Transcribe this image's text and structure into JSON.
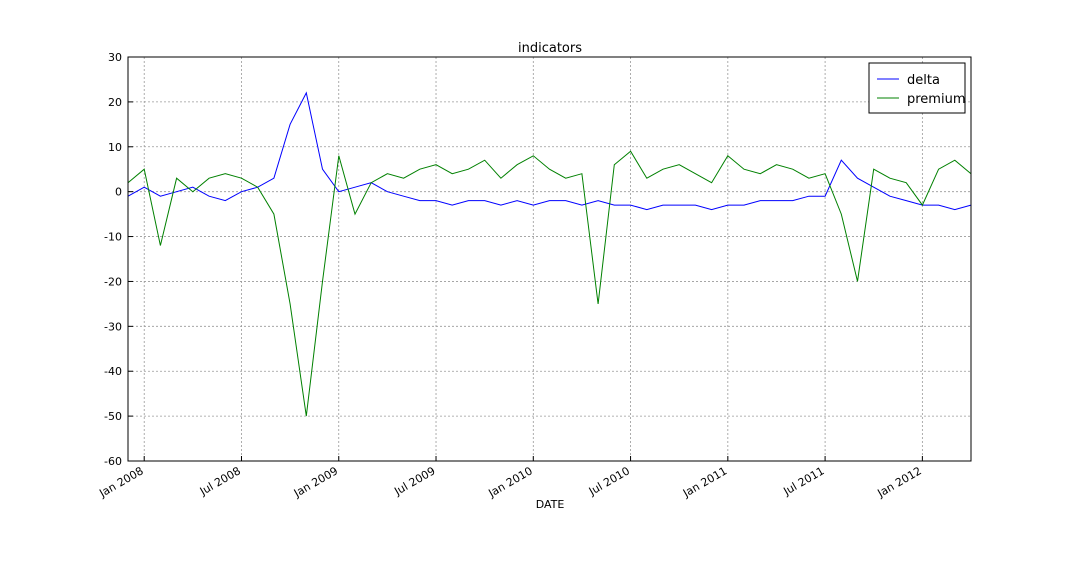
{
  "chart_data": {
    "type": "line",
    "title": "indicators",
    "x_label": "DATE",
    "x": [
      "2007-12",
      "2008-01",
      "2008-02",
      "2008-03",
      "2008-04",
      "2008-05",
      "2008-06",
      "2008-07",
      "2008-08",
      "2008-09",
      "2008-10",
      "2008-11",
      "2008-12",
      "2009-01",
      "2009-02",
      "2009-03",
      "2009-04",
      "2009-05",
      "2009-06",
      "2009-07",
      "2009-08",
      "2009-09",
      "2009-10",
      "2009-11",
      "2009-12",
      "2010-01",
      "2010-02",
      "2010-03",
      "2010-04",
      "2010-05",
      "2010-06",
      "2010-07",
      "2010-08",
      "2010-09",
      "2010-10",
      "2010-11",
      "2010-12",
      "2011-01",
      "2011-02",
      "2011-03",
      "2011-04",
      "2011-05",
      "2011-06",
      "2011-07",
      "2011-08",
      "2011-09",
      "2011-10",
      "2011-11",
      "2011-12",
      "2012-01",
      "2012-02",
      "2012-03",
      "2012-04"
    ],
    "series": [
      {
        "name": "delta",
        "color": "#0000ff",
        "values": [
          -1,
          1,
          -1,
          0,
          1,
          -1,
          -2,
          0,
          1,
          3,
          15,
          22,
          5,
          0,
          1,
          2,
          0,
          -1,
          -2,
          -2,
          -3,
          -2,
          -2,
          -3,
          -2,
          -3,
          -2,
          -2,
          -3,
          -2,
          -3,
          -3,
          -4,
          -3,
          -3,
          -3,
          -4,
          -3,
          -3,
          -2,
          -2,
          -2,
          -1,
          -1,
          7,
          3,
          1,
          -1,
          -2,
          -3,
          -3,
          -4,
          -3
        ]
      },
      {
        "name": "premium",
        "color": "#008000",
        "values": [
          2,
          5,
          -12,
          3,
          0,
          3,
          4,
          3,
          1,
          -5,
          -25,
          -50,
          -20,
          8,
          -5,
          2,
          4,
          3,
          5,
          6,
          4,
          5,
          7,
          3,
          6,
          8,
          5,
          3,
          4,
          -25,
          6,
          9,
          3,
          5,
          6,
          4,
          2,
          8,
          5,
          4,
          6,
          5,
          3,
          4,
          -5,
          -20,
          5,
          3,
          2,
          -3,
          5,
          7,
          4
        ]
      }
    ],
    "xlim": [
      "2007-12",
      "2012-04"
    ],
    "xticks": [
      {
        "value": "2008-01",
        "label": "Jan 2008"
      },
      {
        "value": "2008-07",
        "label": "Jul 2008"
      },
      {
        "value": "2009-01",
        "label": "Jan 2009"
      },
      {
        "value": "2009-07",
        "label": "Jul 2009"
      },
      {
        "value": "2010-01",
        "label": "Jan 2010"
      },
      {
        "value": "2010-07",
        "label": "Jul 2010"
      },
      {
        "value": "2011-01",
        "label": "Jan 2011"
      },
      {
        "value": "2011-07",
        "label": "Jul 2011"
      },
      {
        "value": "2012-01",
        "label": "Jan 2012"
      }
    ],
    "ylim": [
      -60,
      30
    ],
    "yticks": [
      -60,
      -50,
      -40,
      -30,
      -20,
      -10,
      0,
      10,
      20,
      30
    ],
    "grid": true,
    "legend": "upper-right"
  }
}
